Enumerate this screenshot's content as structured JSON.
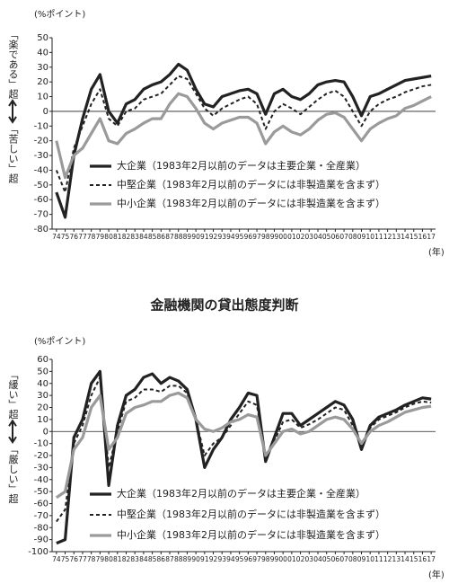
{
  "chart_data": [
    {
      "type": "line",
      "y_label": "(%ポイント)",
      "x_label": "(年)",
      "upper_label": "「楽である」超",
      "lower_label": "「苦しい」超",
      "categories": [
        "74",
        "75",
        "76",
        "77",
        "78",
        "79",
        "80",
        "81",
        "82",
        "83",
        "84",
        "85",
        "86",
        "87",
        "88",
        "89",
        "90",
        "91",
        "92",
        "93",
        "94",
        "95",
        "96",
        "97",
        "98",
        "99",
        "00",
        "01",
        "02",
        "03",
        "04",
        "05",
        "06",
        "07",
        "08",
        "09",
        "10",
        "11",
        "12",
        "13",
        "14",
        "15",
        "16",
        "17"
      ],
      "series": [
        {
          "name": "大企業（1983年2月以前のデータは主要企業・全産業）",
          "color": "#222222",
          "dash": "none",
          "width": 3.2,
          "values": [
            -55,
            -72,
            -30,
            -5,
            15,
            25,
            0,
            -8,
            5,
            8,
            15,
            18,
            20,
            25,
            32,
            28,
            15,
            5,
            3,
            10,
            12,
            14,
            15,
            12,
            -2,
            12,
            15,
            10,
            8,
            12,
            18,
            20,
            21,
            20,
            10,
            -3,
            10,
            12,
            15,
            18,
            21,
            22,
            23,
            24
          ]
        },
        {
          "name": "中堅企業（1983年2月以前のデータには非製造業を含まず）",
          "color": "#222222",
          "dash": "4 3",
          "width": 2,
          "values": [
            -40,
            -55,
            -25,
            -10,
            5,
            15,
            -5,
            -10,
            0,
            2,
            8,
            10,
            12,
            18,
            24,
            22,
            12,
            2,
            -3,
            2,
            5,
            8,
            10,
            5,
            -12,
            0,
            5,
            2,
            -2,
            3,
            8,
            12,
            14,
            10,
            0,
            -10,
            0,
            5,
            8,
            10,
            13,
            15,
            17,
            18
          ]
        },
        {
          "name": "中小企業（1983年2月以前のデータには非製造業を含まず）",
          "color": "#9a9a9a",
          "dash": "none",
          "width": 3.2,
          "values": [
            -20,
            -45,
            -30,
            -25,
            -15,
            -5,
            -20,
            -22,
            -15,
            -12,
            -8,
            -5,
            -5,
            5,
            12,
            10,
            2,
            -8,
            -12,
            -8,
            -6,
            -4,
            -4,
            -8,
            -22,
            -14,
            -10,
            -14,
            -16,
            -12,
            -6,
            -2,
            -1,
            -4,
            -12,
            -20,
            -12,
            -8,
            -5,
            -3,
            2,
            4,
            7,
            10
          ]
        }
      ],
      "ylim": [
        -80,
        50
      ],
      "yticks": [
        50,
        40,
        30,
        20,
        10,
        0,
        -10,
        -20,
        -30,
        -40,
        -50,
        -60,
        -70,
        -80
      ]
    },
    {
      "type": "line",
      "title": "金融機関の貸出態度判断",
      "y_label": "(%ポイント)",
      "x_label": "(年)",
      "upper_label": "「緩い」超",
      "lower_label": "「厳しい」超",
      "categories": [
        "74",
        "75",
        "76",
        "77",
        "78",
        "79",
        "80",
        "81",
        "82",
        "83",
        "84",
        "85",
        "86",
        "87",
        "88",
        "89",
        "90",
        "91",
        "92",
        "93",
        "94",
        "95",
        "96",
        "97",
        "98",
        "99",
        "00",
        "01",
        "02",
        "03",
        "04",
        "05",
        "06",
        "07",
        "08",
        "09",
        "10",
        "11",
        "12",
        "13",
        "14",
        "15",
        "16",
        "17"
      ],
      "series": [
        {
          "name": "大企業（1983年2月以前のデータは主要企業・全産業）",
          "color": "#222222",
          "dash": "none",
          "width": 3.2,
          "values": [
            -93,
            -90,
            -5,
            10,
            40,
            50,
            -45,
            5,
            30,
            35,
            45,
            48,
            40,
            45,
            42,
            35,
            10,
            -30,
            -15,
            -5,
            10,
            20,
            32,
            30,
            -25,
            -5,
            15,
            15,
            5,
            10,
            15,
            20,
            25,
            22,
            10,
            -15,
            5,
            12,
            15,
            18,
            22,
            25,
            28,
            27
          ]
        },
        {
          "name": "中堅企業（1983年2月以前のデータには非製造業を含まず）",
          "color": "#222222",
          "dash": "4 3",
          "width": 2,
          "values": [
            -75,
            -65,
            -10,
            5,
            30,
            45,
            -30,
            0,
            25,
            28,
            35,
            35,
            33,
            38,
            38,
            32,
            10,
            -20,
            -10,
            -5,
            5,
            15,
            25,
            22,
            -22,
            -8,
            8,
            10,
            3,
            6,
            10,
            15,
            20,
            18,
            5,
            -12,
            3,
            10,
            13,
            16,
            20,
            23,
            25,
            24
          ]
        },
        {
          "name": "中小企業（1983年2月以前のデータには非製造業を含まず）",
          "color": "#9a9a9a",
          "dash": "none",
          "width": 3.2,
          "values": [
            -55,
            -50,
            -15,
            -5,
            20,
            30,
            -15,
            -5,
            15,
            20,
            22,
            25,
            25,
            30,
            32,
            28,
            10,
            2,
            0,
            3,
            8,
            10,
            14,
            12,
            -20,
            -10,
            0,
            2,
            -2,
            0,
            5,
            10,
            12,
            10,
            2,
            -10,
            0,
            5,
            8,
            12,
            16,
            18,
            20,
            21
          ]
        }
      ],
      "ylim": [
        -100,
        60
      ],
      "yticks": [
        60,
        50,
        40,
        30,
        20,
        10,
        0,
        -10,
        -20,
        -30,
        -40,
        -50,
        -60,
        -70,
        -80,
        -90,
        -100
      ]
    }
  ]
}
